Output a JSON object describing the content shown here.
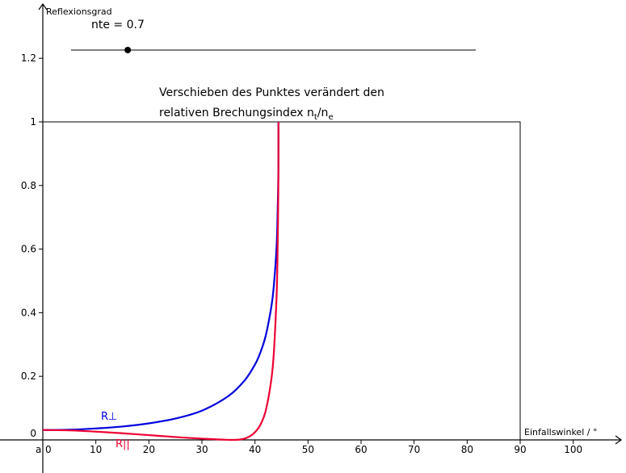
{
  "chart_data": {
    "type": "line",
    "xlabel": "Einfallswinkel / °",
    "ylabel": "Reflexionsgrad",
    "xlim": [
      0,
      105
    ],
    "ylim": [
      0,
      1.3
    ],
    "xticks": [
      "0",
      "10",
      "20",
      "30",
      "40",
      "50",
      "60",
      "70",
      "80",
      "90",
      "100"
    ],
    "yticks": [
      "0",
      "0.2",
      "0.4",
      "0.6",
      "0.8",
      "1",
      "1.2"
    ],
    "origin_label": "a",
    "grid": false,
    "series": [
      {
        "name": "R⊥",
        "color": "#0000dd",
        "x": [
          0,
          5,
          10,
          15,
          20,
          25,
          30,
          35,
          38,
          40,
          41,
          42,
          43,
          43.5,
          44,
          44.2,
          44.4,
          44.43
        ],
        "y": [
          0.031,
          0.032,
          0.036,
          0.042,
          0.052,
          0.067,
          0.092,
          0.138,
          0.186,
          0.237,
          0.274,
          0.326,
          0.41,
          0.475,
          0.585,
          0.665,
          0.83,
          1.0
        ]
      },
      {
        "name": "R||",
        "color": "#ee0033",
        "x": [
          0,
          5,
          10,
          15,
          20,
          25,
          30,
          33,
          35,
          36,
          37,
          38,
          39,
          40,
          41,
          42,
          43,
          43.5,
          44,
          44.2,
          44.4,
          44.43
        ],
        "y": [
          0.031,
          0.03,
          0.026,
          0.021,
          0.015,
          0.009,
          0.004,
          0.0015,
          0.0002,
          0.0,
          0.001,
          0.004,
          0.011,
          0.024,
          0.047,
          0.09,
          0.18,
          0.26,
          0.42,
          0.53,
          0.78,
          1.0
        ]
      }
    ],
    "box": {
      "x_max": 90,
      "y_max": 1
    }
  },
  "slider": {
    "label": "nte = 0.7",
    "value": 0.7,
    "position": 0.14
  },
  "note": {
    "line1": "Verschieben des Punktes verändert den",
    "line2_prefix": "relativen Brechungsindex n",
    "sub_t": "t",
    "slash": "/n",
    "sub_e": "e"
  },
  "colors": {
    "perpendicular": "#0000dd",
    "parallel": "#ee0033",
    "axis": "#000000"
  }
}
